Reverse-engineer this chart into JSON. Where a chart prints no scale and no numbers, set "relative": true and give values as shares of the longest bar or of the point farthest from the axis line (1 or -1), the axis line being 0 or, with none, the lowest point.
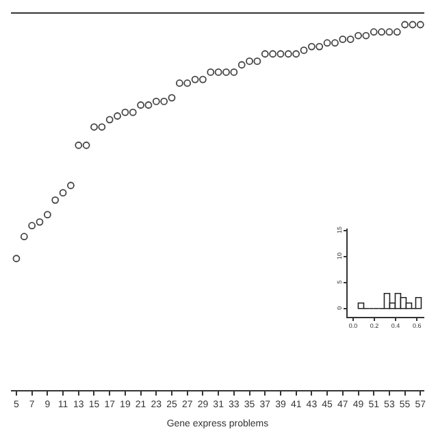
{
  "chart_data": [
    {
      "type": "scatter",
      "relative": true,
      "xlabel": "Gene express problems",
      "marker": "circle",
      "color": "#444444",
      "x": [
        5,
        6,
        7,
        8,
        9,
        10,
        11,
        12,
        13,
        14,
        15,
        16,
        17,
        18,
        19,
        20,
        21,
        22,
        23,
        24,
        25,
        26,
        27,
        28,
        29,
        30,
        31,
        32,
        33,
        34,
        35,
        36,
        37,
        38,
        39,
        40,
        41,
        42,
        43,
        44,
        45,
        46,
        47,
        48,
        49,
        50,
        51,
        52,
        53,
        54,
        55,
        56,
        57
      ],
      "values": [
        0.36,
        0.42,
        0.45,
        0.46,
        0.48,
        0.52,
        0.54,
        0.56,
        0.67,
        0.67,
        0.72,
        0.72,
        0.74,
        0.75,
        0.76,
        0.76,
        0.78,
        0.78,
        0.79,
        0.79,
        0.8,
        0.84,
        0.84,
        0.85,
        0.85,
        0.87,
        0.87,
        0.87,
        0.87,
        0.89,
        0.9,
        0.9,
        0.92,
        0.92,
        0.92,
        0.92,
        0.92,
        0.93,
        0.94,
        0.94,
        0.95,
        0.95,
        0.96,
        0.96,
        0.97,
        0.97,
        0.98,
        0.98,
        0.98,
        0.98,
        1.0,
        1.0,
        1.0
      ],
      "xlim": [
        4.3,
        57.5
      ],
      "xticks": [
        5,
        7,
        9,
        11,
        13,
        15,
        17,
        19,
        21,
        23,
        25,
        27,
        29,
        31,
        33,
        35,
        37,
        39,
        41,
        43,
        45,
        47,
        49,
        51,
        53,
        55,
        57
      ]
    },
    {
      "type": "histogram",
      "color": "#222222",
      "bins": [
        0.05,
        0.1,
        0.15,
        0.2,
        0.25,
        0.3,
        0.35,
        0.4,
        0.45,
        0.5,
        0.55,
        0.6,
        0.65
      ],
      "values": [
        1,
        0,
        0,
        0,
        0,
        3,
        1,
        3,
        2,
        1,
        0,
        2
      ],
      "xlim": [
        -0.05,
        0.67
      ],
      "ylim": [
        -1.5,
        15.5
      ],
      "xticks": [
        {
          "value": 0,
          "label": "0.0"
        },
        {
          "value": 0.2,
          "label": "0.2"
        },
        {
          "value": 0.4,
          "label": "0.4"
        },
        {
          "value": 0.6,
          "label": "0.6"
        }
      ],
      "yticks": [
        0,
        5,
        10,
        15
      ]
    }
  ]
}
